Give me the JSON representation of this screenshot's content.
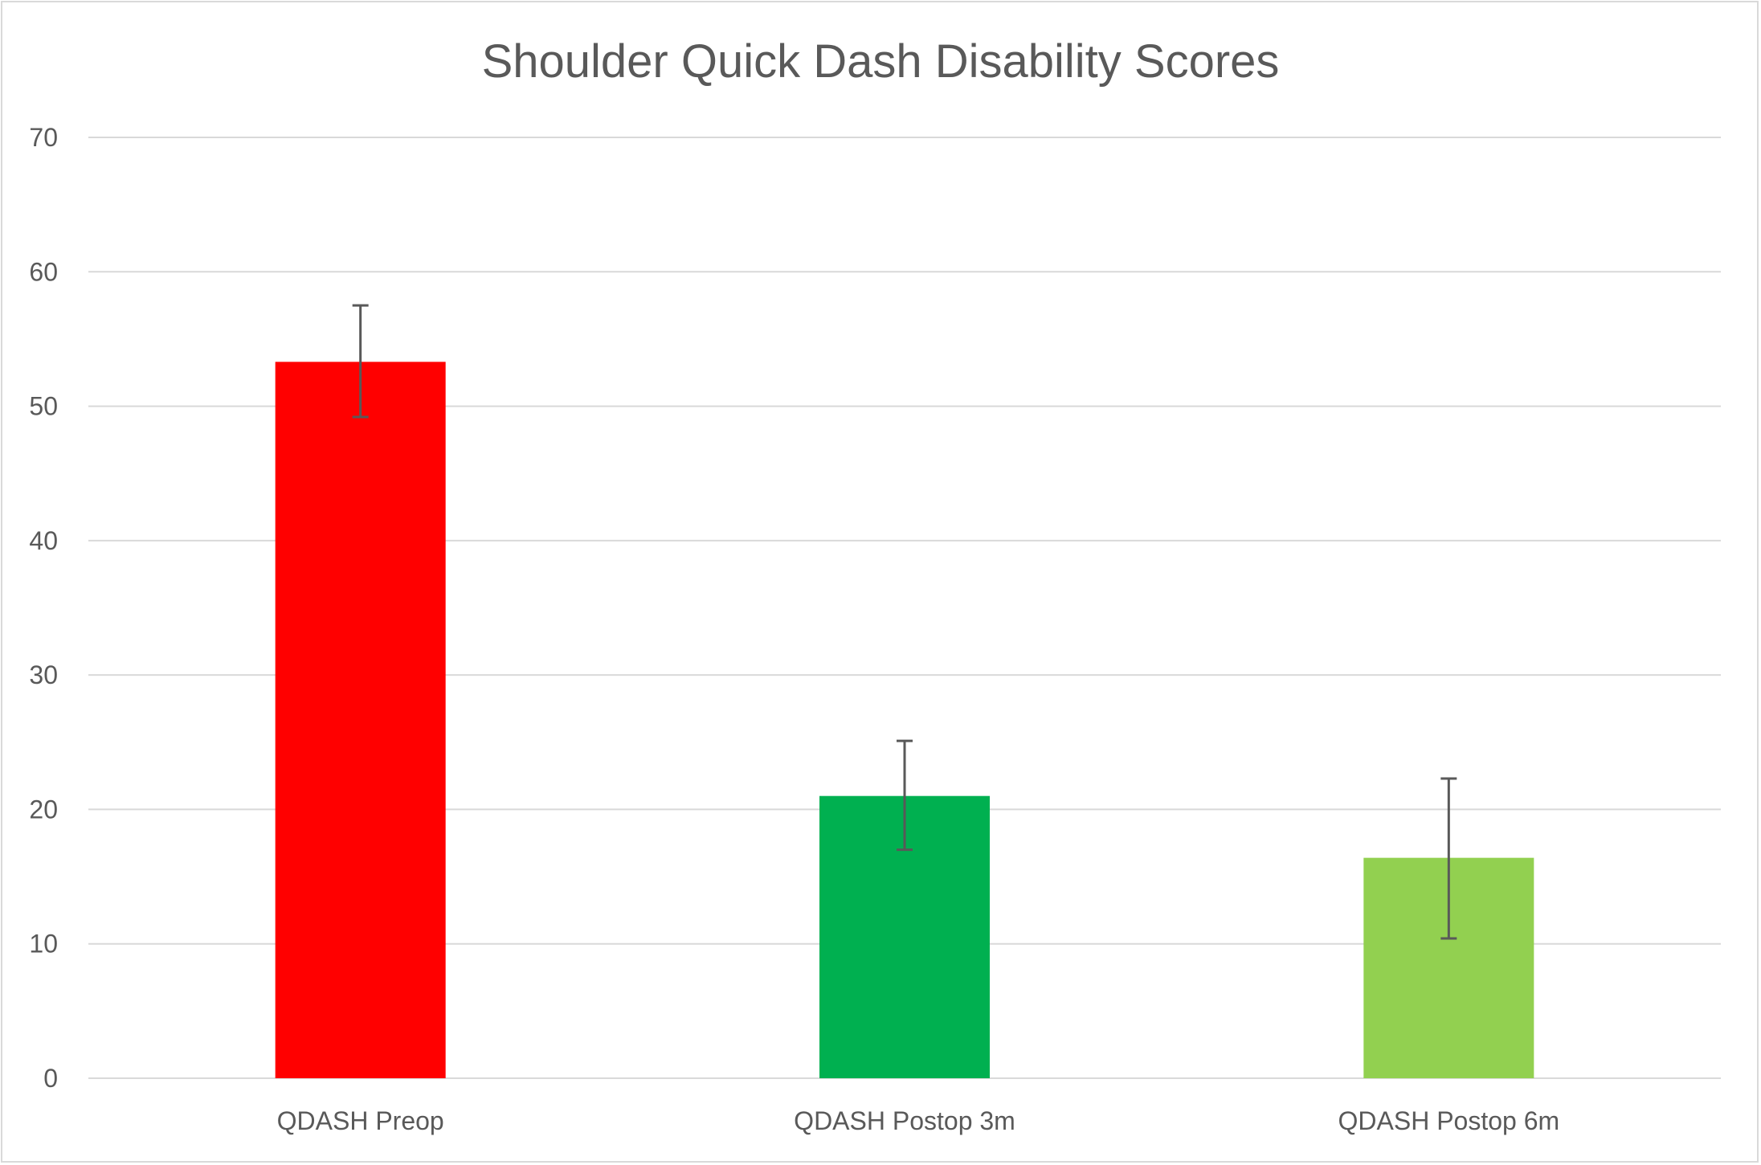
{
  "chart_data": {
    "type": "bar",
    "title": "Shoulder Quick Dash Disability Scores",
    "xlabel": "",
    "ylabel": "",
    "ylim": [
      0,
      70
    ],
    "yticks": [
      0,
      10,
      20,
      30,
      40,
      50,
      60,
      70
    ],
    "grid": true,
    "categories": [
      "QDASH Preop",
      "QDASH Postop 3m",
      "QDASH Postop 6m"
    ],
    "values": [
      53.3,
      21.0,
      16.4
    ],
    "error_plus": [
      4.2,
      4.1,
      5.9
    ],
    "error_minus": [
      4.1,
      4.0,
      6.0
    ],
    "colors": [
      "#ff0000",
      "#00b050",
      "#92d050"
    ],
    "error_color": "#595959"
  }
}
